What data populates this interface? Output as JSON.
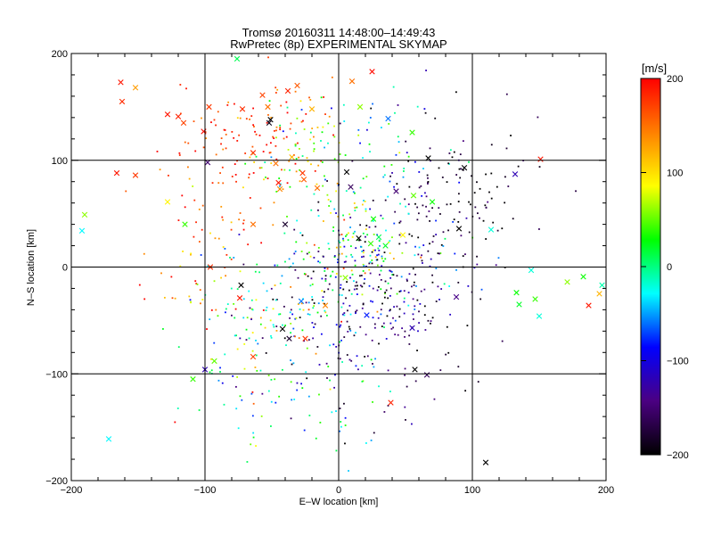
{
  "chart_data": {
    "type": "scatter",
    "title": "Tromsø 20160311 14:48:00–14:49:43",
    "subtitle": "RwPretec (8p) EXPERIMENTAL SKYMAP",
    "xlabel": "E–W location [km]",
    "ylabel": "N–S location [km]",
    "xlim": [
      -200,
      200
    ],
    "ylim": [
      -200,
      200
    ],
    "x_ticks": [
      "−200",
      "−100",
      "0",
      "100",
      "200"
    ],
    "y_ticks": [
      "200",
      "100",
      "0",
      "−100",
      "−200"
    ],
    "grid": true,
    "colorbar": {
      "label": "[m/s]",
      "range": [
        -200,
        200
      ],
      "ticks": [
        "200",
        "100",
        "0",
        "−100",
        "−200"
      ],
      "colors": [
        "#000000",
        "#4b0082",
        "#0000ff",
        "#00ffff",
        "#00ff00",
        "#ffff00",
        "#ff8000",
        "#ff0000"
      ]
    },
    "markers": [
      {
        "x": -163,
        "y": 173,
        "v": 190
      },
      {
        "x": -162,
        "y": 155,
        "v": 180
      },
      {
        "x": -152,
        "y": 168,
        "v": 130
      },
      {
        "x": -128,
        "y": 143,
        "v": 190
      },
      {
        "x": -116,
        "y": 135,
        "v": 170
      },
      {
        "x": -120,
        "y": 141,
        "v": 185
      },
      {
        "x": -97,
        "y": 150,
        "v": 175
      },
      {
        "x": -101,
        "y": 127,
        "v": 195
      },
      {
        "x": -72,
        "y": 148,
        "v": 180
      },
      {
        "x": -57,
        "y": 161,
        "v": 170
      },
      {
        "x": -53,
        "y": 150,
        "v": 150
      },
      {
        "x": -38,
        "y": 165,
        "v": 185
      },
      {
        "x": -31,
        "y": 170,
        "v": 160
      },
      {
        "x": -20,
        "y": 148,
        "v": 120
      },
      {
        "x": 10,
        "y": 174,
        "v": 150
      },
      {
        "x": 25,
        "y": 183,
        "v": 195
      },
      {
        "x": -76,
        "y": 195,
        "v": 10
      },
      {
        "x": -51,
        "y": 138,
        "v": -200
      },
      {
        "x": -52,
        "y": 135,
        "v": -190
      },
      {
        "x": 16,
        "y": 150,
        "v": 60
      },
      {
        "x": 37,
        "y": 139,
        "v": -60
      },
      {
        "x": -166,
        "y": 88,
        "v": 190
      },
      {
        "x": -152,
        "y": 86,
        "v": 175
      },
      {
        "x": -128,
        "y": 61,
        "v": 90
      },
      {
        "x": -98,
        "y": 98,
        "v": -150
      },
      {
        "x": -64,
        "y": 107,
        "v": 180
      },
      {
        "x": -47,
        "y": 97,
        "v": 150
      },
      {
        "x": -35,
        "y": 103,
        "v": 120
      },
      {
        "x": -27,
        "y": 88,
        "v": 175
      },
      {
        "x": -26,
        "y": 82,
        "v": 160
      },
      {
        "x": -45,
        "y": 79,
        "v": 190
      },
      {
        "x": -44,
        "y": 73,
        "v": 140
      },
      {
        "x": -16,
        "y": 74,
        "v": 150
      },
      {
        "x": 6,
        "y": 89,
        "v": -200
      },
      {
        "x": 9,
        "y": 75,
        "v": -160
      },
      {
        "x": 43,
        "y": 71,
        "v": -150
      },
      {
        "x": 67,
        "y": 102,
        "v": -200
      },
      {
        "x": 94,
        "y": 93,
        "v": -200
      },
      {
        "x": 132,
        "y": 87,
        "v": -120
      },
      {
        "x": 151,
        "y": 101,
        "v": 190
      },
      {
        "x": 55,
        "y": 126,
        "v": 40
      },
      {
        "x": 56,
        "y": 67,
        "v": 50
      },
      {
        "x": -190,
        "y": 49,
        "v": 60
      },
      {
        "x": -192,
        "y": 34,
        "v": -30
      },
      {
        "x": -115,
        "y": 40,
        "v": 40
      },
      {
        "x": -64,
        "y": 40,
        "v": 150
      },
      {
        "x": -40,
        "y": 40,
        "v": -180
      },
      {
        "x": 15,
        "y": 27,
        "v": -200
      },
      {
        "x": 24,
        "y": 22,
        "v": 40
      },
      {
        "x": 26,
        "y": 45,
        "v": 30
      },
      {
        "x": 35,
        "y": 20,
        "v": 20
      },
      {
        "x": 30,
        "y": 28,
        "v": 10
      },
      {
        "x": 48,
        "y": 30,
        "v": 90
      },
      {
        "x": 70,
        "y": 61,
        "v": 30
      },
      {
        "x": 114,
        "y": 35,
        "v": -20
      },
      {
        "x": 90,
        "y": 36,
        "v": -200
      },
      {
        "x": -96,
        "y": 0,
        "v": 180
      },
      {
        "x": -73,
        "y": -17,
        "v": -200
      },
      {
        "x": -74,
        "y": -29,
        "v": 190
      },
      {
        "x": -28,
        "y": -32,
        "v": -60
      },
      {
        "x": -42,
        "y": -58,
        "v": -200
      },
      {
        "x": -37,
        "y": -67,
        "v": -180
      },
      {
        "x": -25,
        "y": -67,
        "v": 175
      },
      {
        "x": 5,
        "y": -10,
        "v": 60
      },
      {
        "x": 21,
        "y": -45,
        "v": -80
      },
      {
        "x": 55,
        "y": -57,
        "v": -120
      },
      {
        "x": 88,
        "y": -28,
        "v": -140
      },
      {
        "x": 144,
        "y": -3,
        "v": -20
      },
      {
        "x": 133,
        "y": -24,
        "v": 30
      },
      {
        "x": 135,
        "y": -35,
        "v": 20
      },
      {
        "x": 147,
        "y": -30,
        "v": 40
      },
      {
        "x": 150,
        "y": -46,
        "v": -20
      },
      {
        "x": 171,
        "y": -14,
        "v": 60
      },
      {
        "x": 183,
        "y": -9,
        "v": 30
      },
      {
        "x": 187,
        "y": -36,
        "v": 190
      },
      {
        "x": 195,
        "y": -25,
        "v": 120
      },
      {
        "x": 197,
        "y": -17,
        "v": -10
      },
      {
        "x": -100,
        "y": -96,
        "v": -120
      },
      {
        "x": -93,
        "y": -88,
        "v": 50
      },
      {
        "x": -109,
        "y": -105,
        "v": 40
      },
      {
        "x": 39,
        "y": -127,
        "v": 185
      },
      {
        "x": 57,
        "y": -96,
        "v": -200
      },
      {
        "x": 66,
        "y": -101,
        "v": -160
      },
      {
        "x": -172,
        "y": -161,
        "v": -30
      },
      {
        "x": 110,
        "y": -183,
        "v": -200
      },
      {
        "x": -64,
        "y": -84,
        "v": 170
      },
      {
        "x": -10,
        "y": -36,
        "v": 140
      }
    ],
    "clusters": [
      {
        "cx": -70,
        "cy": 120,
        "sx": 28,
        "sy": 30,
        "n": 110,
        "v": 180,
        "vs": 30
      },
      {
        "cx": -20,
        "cy": 110,
        "sx": 22,
        "sy": 35,
        "n": 90,
        "v": 70,
        "vs": 60
      },
      {
        "cx": 30,
        "cy": 90,
        "sx": 30,
        "sy": 40,
        "n": 90,
        "v": -90,
        "vs": 70
      },
      {
        "cx": 100,
        "cy": 60,
        "sx": 30,
        "sy": 35,
        "n": 90,
        "v": -190,
        "vs": 25
      },
      {
        "cx": -105,
        "cy": 20,
        "sx": 18,
        "sy": 40,
        "n": 55,
        "v": 160,
        "vs": 50
      },
      {
        "cx": 10,
        "cy": 15,
        "sx": 18,
        "sy": 22,
        "n": 120,
        "v": 10,
        "vs": 80
      },
      {
        "cx": 30,
        "cy": -25,
        "sx": 30,
        "sy": 28,
        "n": 160,
        "v": -150,
        "vs": 55
      },
      {
        "cx": -35,
        "cy": -35,
        "sx": 28,
        "sy": 30,
        "n": 120,
        "v": -20,
        "vs": 90
      },
      {
        "cx": -70,
        "cy": -70,
        "sx": 25,
        "sy": 38,
        "n": 70,
        "v": 0,
        "vs": 80
      },
      {
        "cx": 35,
        "cy": -95,
        "sx": 35,
        "sy": 35,
        "n": 60,
        "v": -170,
        "vs": 40
      },
      {
        "cx": -25,
        "cy": -130,
        "sx": 35,
        "sy": 35,
        "n": 60,
        "v": -20,
        "vs": 60
      },
      {
        "cx": 65,
        "cy": 20,
        "sx": 25,
        "sy": 25,
        "n": 60,
        "v": -130,
        "vs": 70
      }
    ]
  }
}
